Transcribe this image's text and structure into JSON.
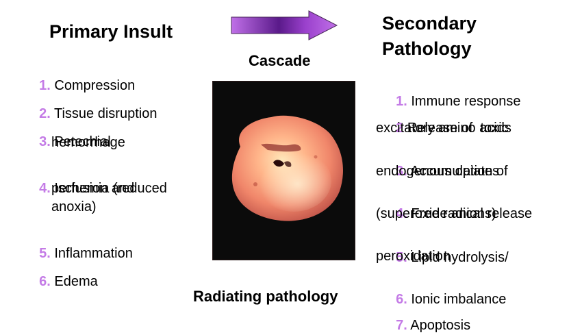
{
  "left": {
    "title": "Primary Insult",
    "items": [
      {
        "num": "1.",
        "lines": [
          "Compression"
        ]
      },
      {
        "num": "2.",
        "lines": [
          "Tissue disruption"
        ]
      },
      {
        "num": "3.",
        "lines": [
          "Petechial",
          "hemorrhage"
        ]
      },
      {
        "num": "4.",
        "lines": [
          "Ischemia (reduced",
          "perfusion and",
          "anoxia)"
        ]
      },
      {
        "num": "5.",
        "lines": [
          "Inflammation"
        ]
      },
      {
        "num": "6.",
        "lines": [
          "Edema"
        ]
      }
    ]
  },
  "center": {
    "cascade_label": "Cascade",
    "caption": "Radiating pathology"
  },
  "right": {
    "title_line1": "Secondary",
    "title_line2": "Pathology",
    "items": [
      {
        "num": "1.",
        "lines": [
          "Immune response"
        ]
      },
      {
        "num": "2",
        "lines": [
          "Release of  toxic",
          "excitatory amino acids"
        ]
      },
      {
        "num": "3.",
        "lines": [
          "Accumulation of",
          "endogenous opiates"
        ]
      },
      {
        "num": "4.",
        "lines": [
          "Free radical release",
          "(superoxide anions)"
        ]
      },
      {
        "num": "5.",
        "lines": [
          "Lipid hydrolysis/",
          "peroxidation"
        ]
      },
      {
        "num": "6.",
        "lines": [
          "Ionic imbalance"
        ]
      },
      {
        "num": "7.",
        "lines": [
          "Apoptosis"
        ]
      }
    ]
  },
  "colors": {
    "number_accent": "#c47be6",
    "arrow_fill": "#c070e8",
    "arrow_core": "#5a1a8a"
  },
  "icons": {
    "arrow": "right-arrow-icon",
    "photo": "spinal-cord-cross-section-image"
  }
}
